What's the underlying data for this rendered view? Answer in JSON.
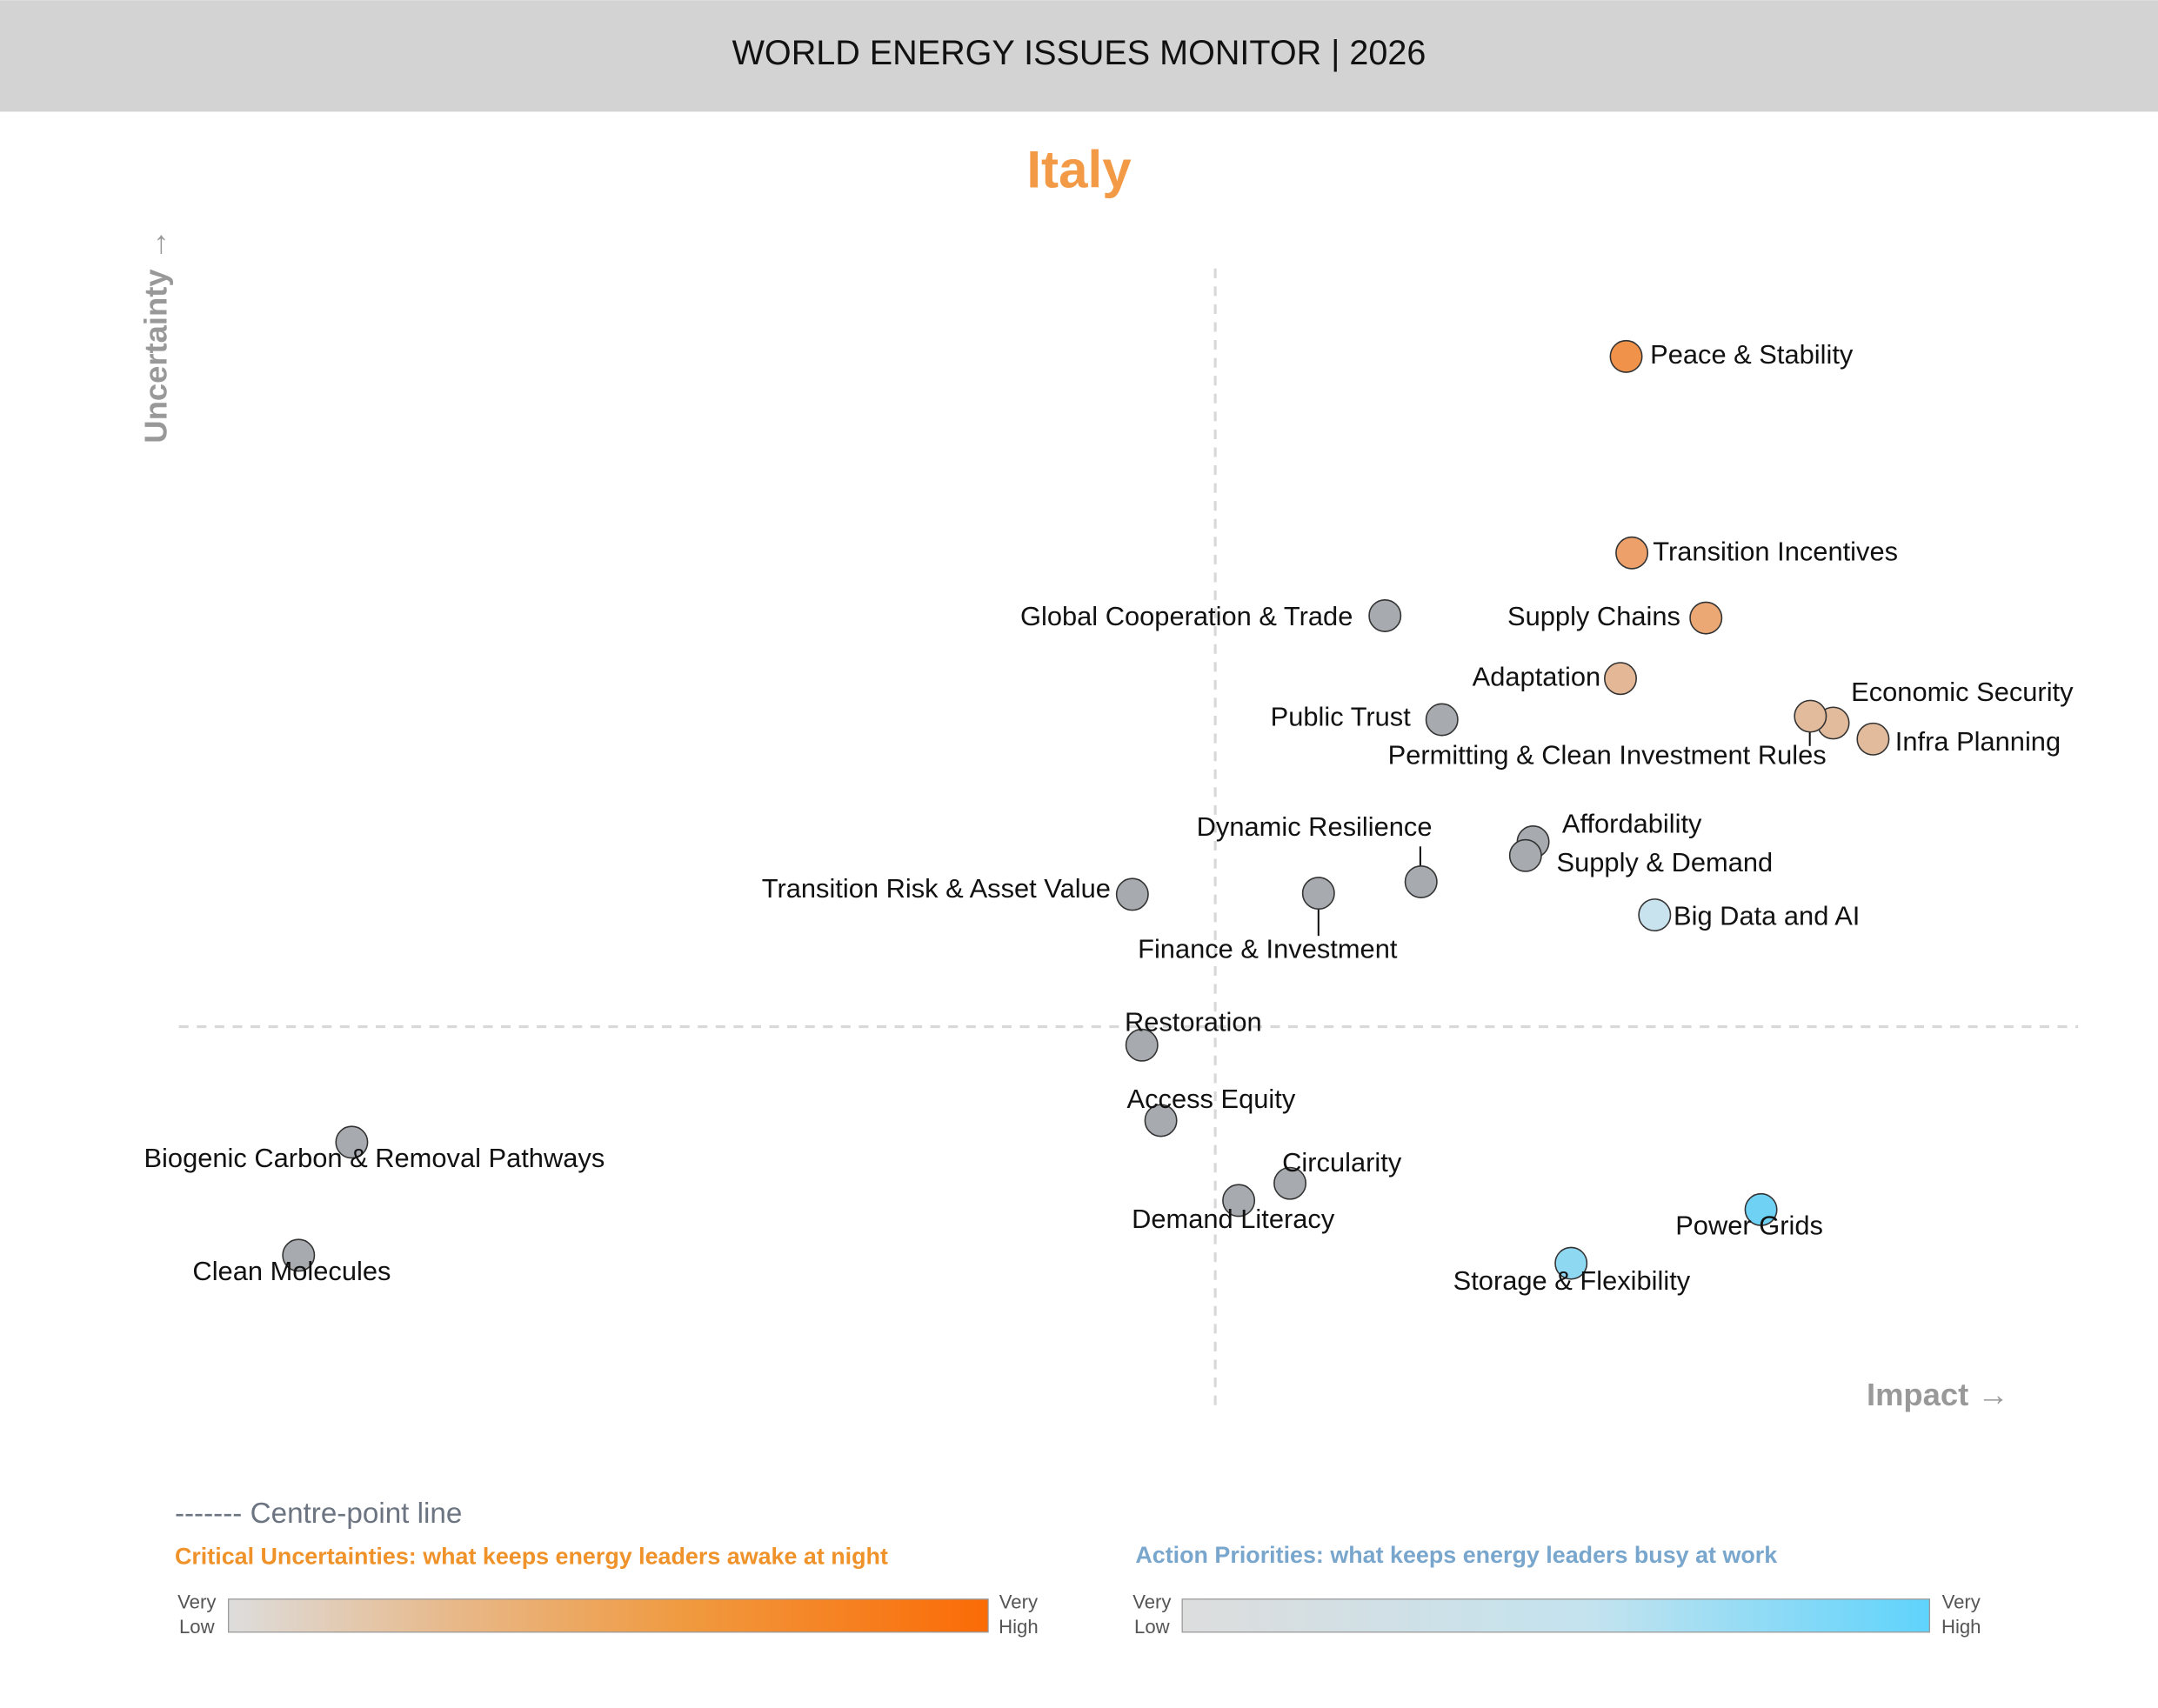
{
  "header": {
    "title": "WORLD ENERGY ISSUES MONITOR | 2026"
  },
  "country": "Italy",
  "colors": {
    "header_bg": "#D3D3D3",
    "title": "#F39A47",
    "neutral_issue": "#A7ABAF",
    "uncertainty_high": "#FB6B06",
    "priority_high": "#5FD3FC",
    "low": "#DDDDDD"
  },
  "chart_data": {
    "type": "scatter",
    "xlabel": "Impact →",
    "ylabel": "Uncertainty →",
    "xlim": [
      0,
      10
    ],
    "ylim": [
      0,
      10
    ],
    "centre": {
      "x": 5.46,
      "y": 3.36
    },
    "grid": false,
    "points": [
      {
        "label": "Peace & Stability",
        "x": 7.62,
        "y": 9.23,
        "color": "#F0924A"
      },
      {
        "label": "Transition Incentives",
        "x": 7.65,
        "y": 7.51,
        "color": "#EDA06A"
      },
      {
        "label": "Supply Chains",
        "x": 8.04,
        "y": 6.94,
        "color": "#EBA874"
      },
      {
        "label": "Global Cooperation & Trade",
        "x": 6.35,
        "y": 6.96,
        "color": "#A7ABAF"
      },
      {
        "label": "Adaptation",
        "x": 7.59,
        "y": 6.41,
        "color": "#E4B896"
      },
      {
        "label": "Public Trust",
        "x": 6.65,
        "y": 6.05,
        "color": "#A7ABAF"
      },
      {
        "label": "Economic Security",
        "x": 8.71,
        "y": 6.02,
        "color": "#E2BB9C"
      },
      {
        "label": "Permitting & Clean Investment Rules",
        "x": 8.59,
        "y": 6.08,
        "color": "#E2BB9C"
      },
      {
        "label": "Infra Planning",
        "x": 8.92,
        "y": 5.88,
        "color": "#E2BB9C"
      },
      {
        "label": "Affordability",
        "x": 7.13,
        "y": 4.98,
        "color": "#A7ABAF"
      },
      {
        "label": "Supply & Demand",
        "x": 7.09,
        "y": 4.86,
        "color": "#A7ABAF"
      },
      {
        "label": "Dynamic Resilience",
        "x": 6.54,
        "y": 4.63,
        "color": "#A7ABAF"
      },
      {
        "label": "Finance & Investment",
        "x": 6.0,
        "y": 4.53,
        "color": "#A7ABAF"
      },
      {
        "label": "Transition Risk & Asset Value",
        "x": 5.02,
        "y": 4.52,
        "color": "#A7ABAF"
      },
      {
        "label": "Big Data and AI",
        "x": 7.77,
        "y": 4.34,
        "color": "#C8E2EE"
      },
      {
        "label": "Restoration",
        "x": 5.07,
        "y": 3.2,
        "color": "#A7ABAF"
      },
      {
        "label": "Access Equity",
        "x": 5.17,
        "y": 2.54,
        "color": "#A7ABAF"
      },
      {
        "label": "Biogenic Carbon & Removal Pathways",
        "x": 0.91,
        "y": 2.35,
        "color": "#A7ABAF"
      },
      {
        "label": "Circularity",
        "x": 5.85,
        "y": 1.99,
        "color": "#A7ABAF"
      },
      {
        "label": "Demand Literacy",
        "x": 5.58,
        "y": 1.84,
        "color": "#A7ABAF"
      },
      {
        "label": "Power Grids",
        "x": 8.33,
        "y": 1.76,
        "color": "#6FD2F5"
      },
      {
        "label": "Storage & Flexibility",
        "x": 7.33,
        "y": 1.29,
        "color": "#8FD8F2"
      },
      {
        "label": "Clean Molecules",
        "x": 0.63,
        "y": 1.36,
        "color": "#A7ABAF"
      }
    ]
  },
  "legend": {
    "centre_line": "------- Centre-point line",
    "uncertainties_title": "Critical Uncertainties: what keeps energy leaders awake at night",
    "priorities_title": "Action Priorities: what keeps energy leaders busy at work",
    "low": [
      "Very",
      "Low"
    ],
    "high": [
      "Very",
      "High"
    ]
  }
}
